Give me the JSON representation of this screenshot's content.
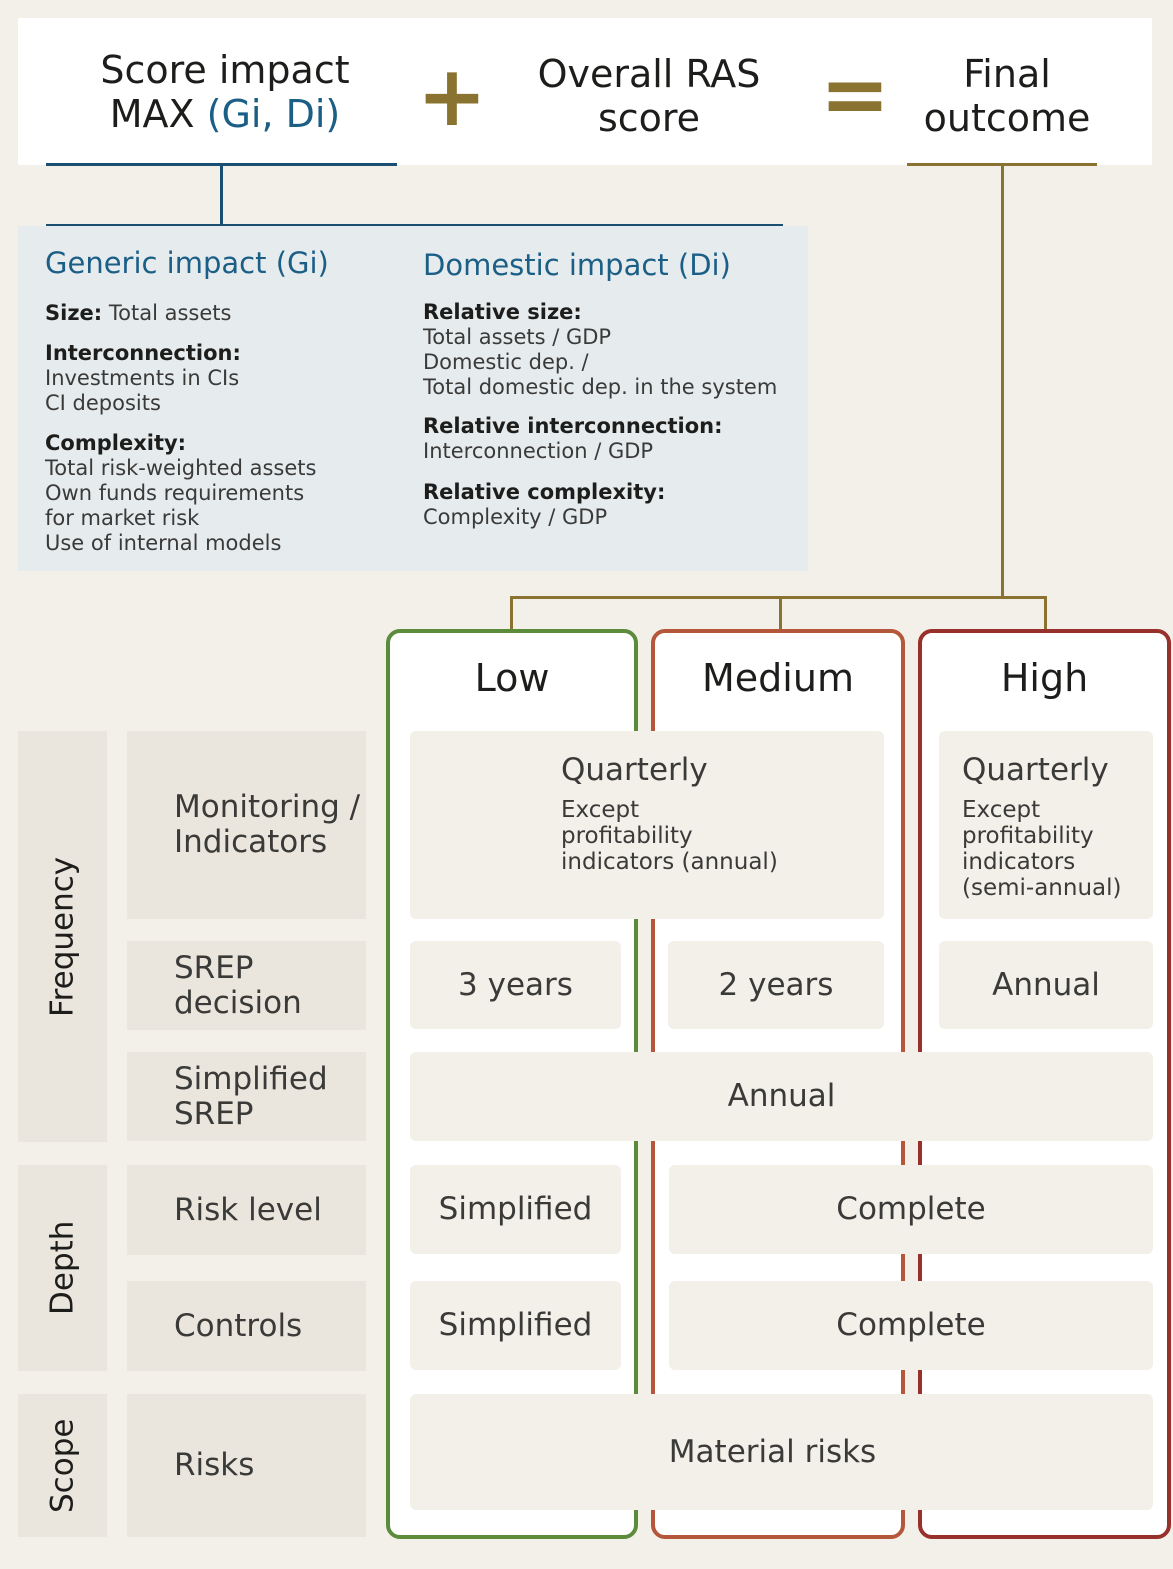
{
  "formula": {
    "score_impact_line1": "Score impact",
    "score_impact_line2_prefix": "MAX ",
    "score_impact_line2_accent": "(Gi, Di)",
    "plus": "+",
    "ras_line1": "Overall RAS",
    "ras_line2": "score",
    "equals": "=",
    "final_line1": "Final",
    "final_line2": "outcome"
  },
  "impact": {
    "generic": {
      "title": "Generic impact (Gi)",
      "size_label": "Size:",
      "size_value": " Total assets",
      "interconnection_label": "Interconnection:",
      "interconnection_values": [
        "Investments in CIs",
        "CI deposits"
      ],
      "complexity_label": "Complexity:",
      "complexity_values": [
        "Total risk-weighted assets",
        "Own funds requirements",
        "for market risk",
        "Use of internal models"
      ]
    },
    "domestic": {
      "title": "Domestic impact (Di)",
      "size_label": "Relative size:",
      "size_values": [
        "Total assets / GDP",
        "Domestic dep. /",
        "Total domestic dep. in the system"
      ],
      "interconnection_label": "Relative interconnection:",
      "interconnection_value": "Interconnection / GDP",
      "complexity_label": "Relative complexity:",
      "complexity_value": "Complexity / GDP"
    }
  },
  "levels": {
    "low": "Low",
    "medium": "Medium",
    "high": "High"
  },
  "rows": {
    "groups": {
      "frequency": "Frequency",
      "depth": "Depth",
      "scope": "Scope"
    },
    "labels": {
      "monitoring": [
        "Monitoring /",
        "Indicators"
      ],
      "srep_decision": [
        "SREP",
        "decision"
      ],
      "simplified_srep": [
        "Simplified",
        "SREP"
      ],
      "risk_level": "Risk level",
      "controls": "Controls",
      "risks": "Risks"
    }
  },
  "cells": {
    "monitoring_low_medium_title": "Quarterly",
    "monitoring_low_medium_note": [
      "Except",
      "profitability",
      "indicators (annual)"
    ],
    "monitoring_high_title": "Quarterly",
    "monitoring_high_note": [
      "Except",
      "profitability",
      "indicators",
      "(semi-annual)"
    ],
    "srep_low": "3 years",
    "srep_medium": "2 years",
    "srep_high": "Annual",
    "simplified_srep_all": "Annual",
    "risk_level_low": "Simplified",
    "risk_level_medium_high": "Complete",
    "controls_low": "Simplified",
    "controls_medium_high": "Complete",
    "risks_all": "Material risks"
  },
  "colors": {
    "low": "#5d8b3c",
    "medium": "#b5573a",
    "high": "#98302b",
    "navy": "#1b4f72",
    "gold": "#8a7330"
  }
}
